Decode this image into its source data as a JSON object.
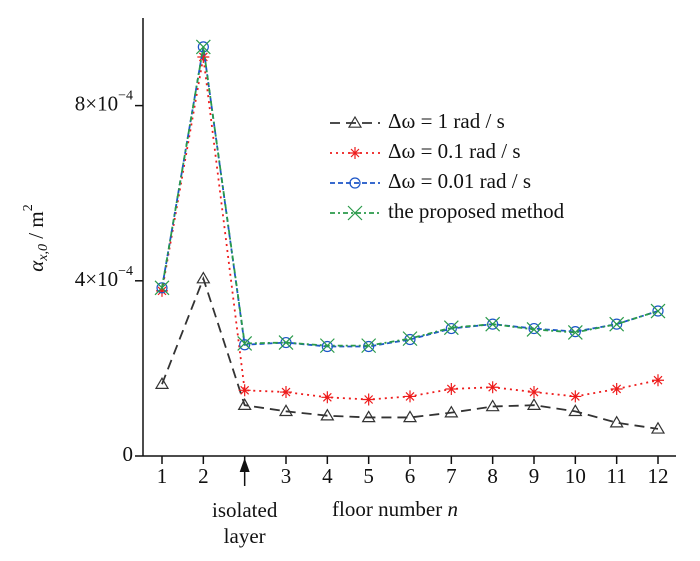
{
  "chart_data": {
    "type": "line",
    "ylabel": {
      "symbol": "α",
      "subscript": "x,0",
      "unit": " / m",
      "power": "2"
    },
    "xlabel": {
      "text": "floor number",
      "variable": "n"
    },
    "annotation": {
      "lines": [
        "isolated",
        "layer"
      ],
      "category": 2
    },
    "categories": [
      "1",
      "2",
      null,
      "3",
      "4",
      "5",
      "6",
      "7",
      "8",
      "9",
      "10",
      "11",
      "12"
    ],
    "ylim": [
      0,
      0.001
    ],
    "yticks": [
      0,
      {
        "value": 0.0004,
        "label": "4×10",
        "exponent": "−4"
      },
      {
        "value": 0.0008,
        "label": "8×10",
        "exponent": "−4"
      }
    ],
    "legend": "upper right",
    "series": [
      {
        "name": "Δω = 1 rad / s",
        "color": "#333333",
        "dash": "10,6",
        "marker": "triangle",
        "values": [
          0.000164,
          0.000405,
          0.000116,
          0.000102,
          9.2e-05,
          8.8e-05,
          8.8e-05,
          9.9e-05,
          0.000113,
          0.000116,
          0.000102,
          7.6e-05,
          6.2e-05
        ]
      },
      {
        "name": "Δω = 0.1 rad / s",
        "color": "#ee1c1c",
        "dash": "2,4",
        "marker": "star",
        "values": [
          0.000377,
          0.000911,
          0.00015,
          0.000146,
          0.000134,
          0.000129,
          0.000136,
          0.000153,
          0.000157,
          0.000146,
          0.000136,
          0.000153,
          0.000173
        ]
      },
      {
        "name": "Δω = 0.01 rad / s",
        "color": "#1c56c8",
        "dash": "5,3",
        "marker": "circle",
        "values": [
          0.000384,
          0.000934,
          0.000254,
          0.000259,
          0.00025,
          0.00025,
          0.000266,
          0.000291,
          0.000301,
          0.000291,
          0.000284,
          0.000301,
          0.000331
        ]
      },
      {
        "name": "the proposed method",
        "color": "#2a9a4a",
        "dash": "5,3,2,3",
        "marker": "x",
        "values": [
          0.000384,
          0.000934,
          0.000257,
          0.000259,
          0.000252,
          0.000252,
          0.000268,
          0.000293,
          0.000301,
          0.000289,
          0.000282,
          0.000301,
          0.000331
        ]
      }
    ]
  }
}
